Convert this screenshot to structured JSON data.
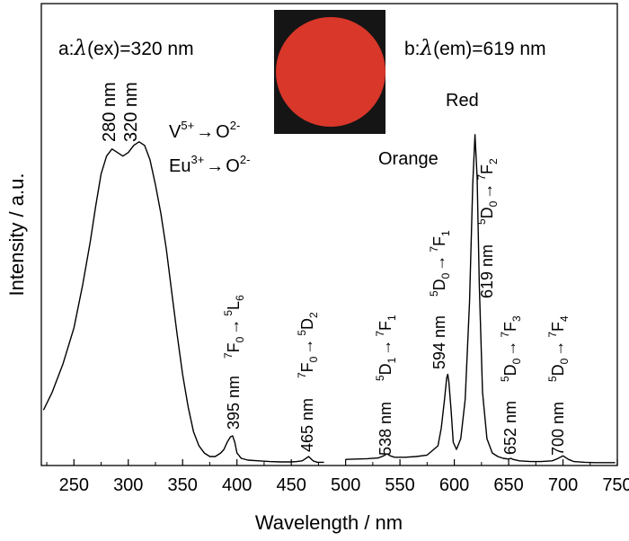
{
  "chart_data": {
    "type": "line",
    "xlabel": "Wavelength / nm",
    "ylabel": "Intensity / a.u.",
    "xlim": [
      220,
      750
    ],
    "xticks": [
      "250",
      "300",
      "350",
      "400",
      "450",
      "500",
      "550",
      "600",
      "650",
      "700",
      "750"
    ],
    "grid": false,
    "panel_labels": {
      "a": {
        "prefix": "a:",
        "lambda": "λ",
        "rest": "(ex)=320 nm"
      },
      "b": {
        "prefix": "b:",
        "lambda": "λ",
        "rest": "(em)=619 nm"
      }
    },
    "inset": {
      "description_color": "#d8372a",
      "background": "#151515"
    },
    "series": [
      {
        "x": [
          222,
          230,
          240,
          250,
          258,
          265,
          270,
          275,
          280,
          285,
          290,
          295,
          300,
          305,
          310,
          315,
          320,
          325,
          330,
          335,
          340,
          345,
          350,
          355,
          360,
          365,
          370,
          375,
          380,
          385,
          388,
          391,
          394,
          396,
          398,
          400,
          404,
          410,
          420,
          430,
          440,
          450,
          455,
          460,
          463,
          466,
          468,
          470,
          474,
          480
        ],
        "y": [
          0.15,
          0.2,
          0.28,
          0.38,
          0.5,
          0.62,
          0.72,
          0.81,
          0.86,
          0.88,
          0.87,
          0.86,
          0.87,
          0.89,
          0.9,
          0.89,
          0.85,
          0.78,
          0.7,
          0.6,
          0.48,
          0.36,
          0.25,
          0.16,
          0.09,
          0.05,
          0.03,
          0.02,
          0.02,
          0.03,
          0.04,
          0.06,
          0.075,
          0.078,
          0.06,
          0.03,
          0.015,
          0.01,
          0.008,
          0.006,
          0.005,
          0.005,
          0.006,
          0.008,
          0.014,
          0.02,
          0.014,
          0.008,
          0.004,
          0.004
        ]
      },
      {
        "x": [
          500,
          510,
          520,
          530,
          535,
          538,
          541,
          545,
          555,
          565,
          575,
          585,
          588,
          591,
          593,
          594,
          595,
          597,
          599,
          602,
          606,
          610,
          614,
          617,
          619,
          621,
          623,
          626,
          630,
          635,
          640,
          645,
          650,
          652,
          654,
          660,
          670,
          680,
          690,
          695,
          700,
          705,
          710,
          720,
          730,
          740,
          748
        ],
        "y": [
          0.012,
          0.013,
          0.014,
          0.016,
          0.022,
          0.028,
          0.022,
          0.018,
          0.018,
          0.02,
          0.024,
          0.05,
          0.1,
          0.18,
          0.24,
          0.25,
          0.23,
          0.15,
          0.06,
          0.04,
          0.07,
          0.18,
          0.45,
          0.78,
          0.92,
          0.8,
          0.5,
          0.2,
          0.07,
          0.03,
          0.02,
          0.015,
          0.013,
          0.015,
          0.012,
          0.008,
          0.006,
          0.006,
          0.008,
          0.014,
          0.022,
          0.012,
          0.006,
          0.004,
          0.003,
          0.003,
          0.003
        ]
      }
    ],
    "annotations": [
      {
        "text": "280 nm"
      },
      {
        "text": "320 nm"
      },
      {
        "text": "395 nm"
      },
      {
        "text": "465 nm"
      },
      {
        "text": "538 nm"
      },
      {
        "text": "594 nm"
      },
      {
        "text": "619 nm"
      },
      {
        "text": "652 nm"
      },
      {
        "text": "700 nm"
      },
      {
        "text": "Red",
        "color": "#e3353f"
      },
      {
        "text": "Orange",
        "color": "#f08a2d"
      }
    ],
    "transitions": {
      "v_o": {
        "a": "V",
        "a_sup": "5+",
        "arrow": "→",
        "b": "O",
        "b_sup": "2-"
      },
      "eu_o": {
        "a": "Eu",
        "a_sup": "3+",
        "arrow": "→",
        "b": "O",
        "b_sup": "2-"
      },
      "t395": {
        "s1": "7",
        "b1": "F",
        "d1": "0",
        "arrow": "→",
        "s2": "5",
        "b2": "L",
        "d2": "6"
      },
      "t465": {
        "s1": "7",
        "b1": "F",
        "d1": "0",
        "arrow": "→",
        "s2": "5",
        "b2": "D",
        "d2": "2"
      },
      "t538": {
        "s1": "5",
        "b1": "D",
        "d1": "1",
        "arrow": "→",
        "s2": "7",
        "b2": "F",
        "d2": "1"
      },
      "t594": {
        "s1": "5",
        "b1": "D",
        "d1": "0",
        "arrow": "→",
        "s2": "7",
        "b2": "F",
        "d2": "1"
      },
      "t619": {
        "s1": "5",
        "b1": "D",
        "d1": "0",
        "arrow": "→",
        "s2": "7",
        "b2": "F",
        "d2": "2"
      },
      "t652": {
        "s1": "5",
        "b1": "D",
        "d1": "0",
        "arrow": "→",
        "s2": "7",
        "b2": "F",
        "d2": "3"
      },
      "t700": {
        "s1": "5",
        "b1": "D",
        "d1": "0",
        "arrow": "→",
        "s2": "7",
        "b2": "F",
        "d2": "4"
      }
    }
  }
}
